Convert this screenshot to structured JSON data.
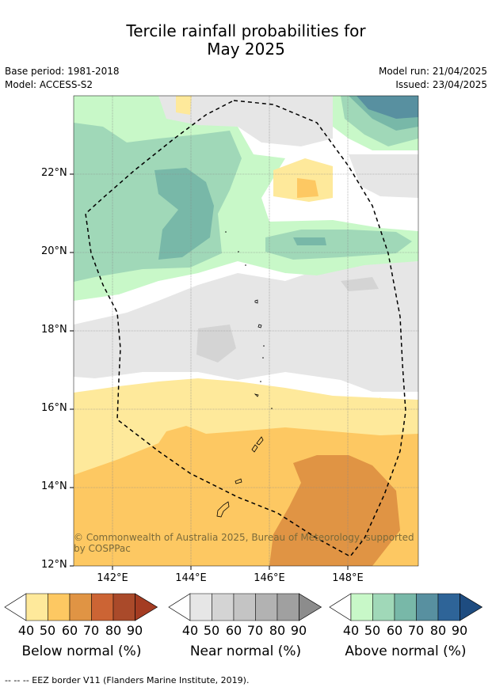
{
  "title_line1": "Tercile rainfall probabilities for",
  "title_line2": "May 2025",
  "meta_left": {
    "base_period": "Base period: 1981-2018",
    "model": "Model: ACCESS-S2"
  },
  "meta_right": {
    "model_run": "Model run: 21/04/2025",
    "issued": "Issued: 23/04/2025"
  },
  "y_ticks": [
    "22°N",
    "20°N",
    "18°N",
    "16°N",
    "14°N",
    "12°N"
  ],
  "x_ticks": [
    "142°E",
    "144°E",
    "146°E",
    "148°E"
  ],
  "copyright": "© Commonwealth of Australia 2025, Bureau of Meteorology, supported by COSPPac",
  "legends": [
    {
      "label": "Below normal (%)",
      "ticks": [
        "40",
        "50",
        "60",
        "70",
        "80",
        "90"
      ],
      "colors": [
        "#ffffff",
        "#fee99b",
        "#fdc862",
        "#e09444",
        "#cc6434",
        "#aa4a2a",
        "#a43c22"
      ]
    },
    {
      "label": "Near normal (%)",
      "ticks": [
        "40",
        "50",
        "60",
        "70",
        "80",
        "90"
      ],
      "colors": [
        "#ffffff",
        "#e6e6e6",
        "#d4d4d4",
        "#c4c4c4",
        "#b2b2b2",
        "#a0a0a0",
        "#8c8c8c"
      ]
    },
    {
      "label": "Above normal (%)",
      "ticks": [
        "40",
        "50",
        "60",
        "70",
        "80",
        "90"
      ],
      "colors": [
        "#ffffff",
        "#c8f8c8",
        "#a0d8b8",
        "#78b8a8",
        "#5890a0",
        "#2e6498",
        "#1e4c80"
      ]
    }
  ],
  "footer": "--  --  -- EEZ border V11 (Flanders Marine Institute, 2019)."
}
